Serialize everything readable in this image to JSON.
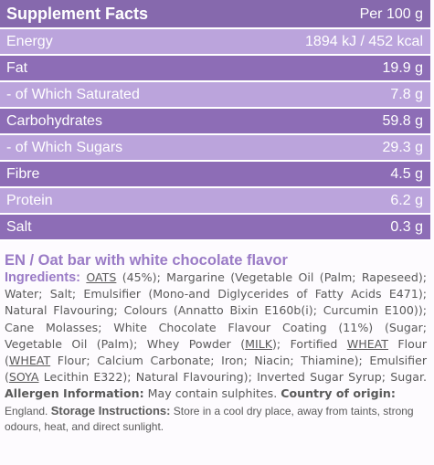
{
  "facts": {
    "title": "Supplement Facts",
    "per": "Per 100 g",
    "rows": [
      {
        "name": "Energy",
        "value": "1894 kJ / 452 kcal"
      },
      {
        "name": "Fat",
        "value": "19.9 g"
      },
      {
        "name": "- of Which Saturated",
        "value": "7.8 g"
      },
      {
        "name": "Carbohydrates",
        "value": "59.8 g"
      },
      {
        "name": "- of Which Sugars",
        "value": "29.3 g"
      },
      {
        "name": "Fibre",
        "value": "4.5 g"
      },
      {
        "name": "Protein",
        "value": "6.2 g"
      },
      {
        "name": "Salt",
        "value": "0.3 g"
      }
    ]
  },
  "product_title": "EN / Oat bar with white chocolate flavor",
  "ingredients": {
    "label": "Ingredients:",
    "p1": "OATS",
    "p2": " (45%); Margarine (Vegetable Oil (Palm; Rapeseed); Water; Salt; Emulsifier (Mono-and Diglycerides of Fatty Acids E471); Natural Flavouring; Colours (Annatto Bixin E160b(i); Curcumin E100)); Cane Molasses; White Chocolate Flavour Coating (11%) (Sugar; Vegetable Oil (Palm); Whey Powder (",
    "p3": "MILK",
    "p4": "); Fortified ",
    "p5": "WHEAT",
    "p6": " Flour (",
    "p7": "WHEAT",
    "p8": " Flour; Calcium Carbonate; Iron; Niacin; Thiamine); Emulsifier (",
    "p9": "SOYA",
    "p10": " Lecithin E322); Natural Flavouring); Inverted Sugar Syrup; Sugar. ",
    "allergen_label": "Allergen Information:",
    "allergen_text": " May contain sulphites. ",
    "origin_label": "Country of origin:",
    "origin_text": " England. ",
    "storage_label": "Storage Instructions:",
    "storage_text": " Store in a cool dry place, away from taints, strong odours, heat, and direct sunlight."
  }
}
